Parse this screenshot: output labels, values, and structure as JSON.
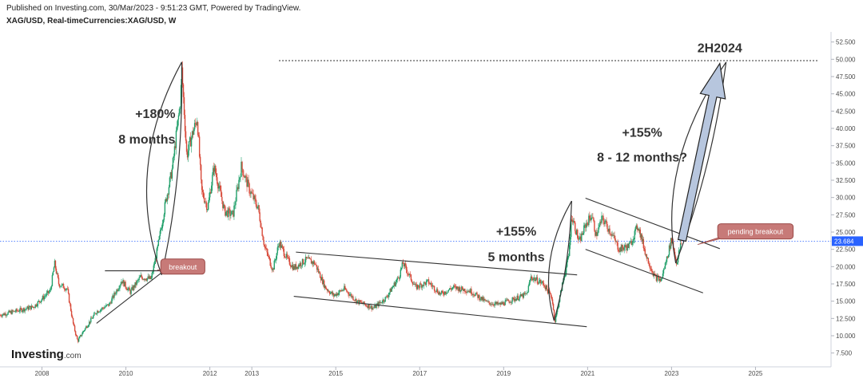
{
  "header": {
    "published": "Published on Investing.com, 30/Mar/2023 - 9:51:23 GMT, Powered by TradingView.",
    "symbol": "XAG/USD, Real-timeCurrencies:XAG/USD, W"
  },
  "branding": {
    "logo_main": "Investing",
    "logo_suffix": ".com"
  },
  "chart_data": {
    "type": "candlestick",
    "title": "XAG/USD, Real-timeCurrencies:XAG/USD, W",
    "interval": "W",
    "ylim": [
      5.5,
      53.5
    ],
    "y_ticks": [
      "52.500",
      "50.000",
      "47.500",
      "45.000",
      "42.500",
      "40.000",
      "37.500",
      "35.000",
      "32.500",
      "30.000",
      "27.500",
      "25.000",
      "22.500",
      "20.000",
      "17.500",
      "15.000",
      "12.500",
      "10.000",
      "7.500"
    ],
    "x_ticks": [
      {
        "year": 2008,
        "label": "2008"
      },
      {
        "year": 2010,
        "label": "2010"
      },
      {
        "year": 2012,
        "label": "2012"
      },
      {
        "year": 2013,
        "label": "2013"
      },
      {
        "year": 2015,
        "label": "2015"
      },
      {
        "year": 2017,
        "label": "2017"
      },
      {
        "year": 2019,
        "label": "2019"
      },
      {
        "year": 2021,
        "label": "2021"
      },
      {
        "year": 2023,
        "label": "2023"
      },
      {
        "year": 2025,
        "label": "2025"
      }
    ],
    "xlim": [
      2007.0,
      2026.8
    ],
    "last_price": 23.684,
    "last_price_label": "23.684",
    "target_level": 49.8,
    "price_path": [
      [
        2007.0,
        13.0
      ],
      [
        2007.4,
        13.6
      ],
      [
        2007.8,
        14.2
      ],
      [
        2008.2,
        16.5
      ],
      [
        2008.3,
        20.5
      ],
      [
        2008.4,
        17.5
      ],
      [
        2008.6,
        16.8
      ],
      [
        2008.75,
        11.5
      ],
      [
        2008.85,
        9.2
      ],
      [
        2009.0,
        10.8
      ],
      [
        2009.3,
        13.5
      ],
      [
        2009.6,
        14.5
      ],
      [
        2009.9,
        18.0
      ],
      [
        2010.1,
        16.3
      ],
      [
        2010.35,
        18.5
      ],
      [
        2010.6,
        18.2
      ],
      [
        2010.75,
        22.5
      ],
      [
        2010.95,
        29.5
      ],
      [
        2011.1,
        34.0
      ],
      [
        2011.3,
        44.0
      ],
      [
        2011.33,
        48.5
      ],
      [
        2011.45,
        36.0
      ],
      [
        2011.55,
        38.5
      ],
      [
        2011.7,
        41.5
      ],
      [
        2011.8,
        31.0
      ],
      [
        2011.95,
        28.5
      ],
      [
        2012.1,
        34.5
      ],
      [
        2012.35,
        28.0
      ],
      [
        2012.55,
        27.5
      ],
      [
        2012.75,
        34.5
      ],
      [
        2012.95,
        31.0
      ],
      [
        2013.15,
        28.5
      ],
      [
        2013.3,
        23.0
      ],
      [
        2013.5,
        19.5
      ],
      [
        2013.65,
        23.5
      ],
      [
        2013.85,
        21.0
      ],
      [
        2014.0,
        19.8
      ],
      [
        2014.3,
        21.0
      ],
      [
        2014.5,
        20.5
      ],
      [
        2014.75,
        17.0
      ],
      [
        2014.95,
        15.8
      ],
      [
        2015.2,
        16.8
      ],
      [
        2015.5,
        15.0
      ],
      [
        2015.9,
        14.0
      ],
      [
        2016.2,
        15.5
      ],
      [
        2016.5,
        18.5
      ],
      [
        2016.6,
        20.5
      ],
      [
        2016.9,
        17.0
      ],
      [
        2017.2,
        17.8
      ],
      [
        2017.5,
        16.0
      ],
      [
        2017.8,
        17.0
      ],
      [
        2018.2,
        16.5
      ],
      [
        2018.6,
        14.8
      ],
      [
        2018.9,
        14.5
      ],
      [
        2019.2,
        15.2
      ],
      [
        2019.55,
        16.0
      ],
      [
        2019.65,
        18.5
      ],
      [
        2019.95,
        17.5
      ],
      [
        2020.15,
        15.5
      ],
      [
        2020.22,
        12.0
      ],
      [
        2020.4,
        17.5
      ],
      [
        2020.55,
        21.5
      ],
      [
        2020.62,
        27.5
      ],
      [
        2020.8,
        23.5
      ],
      [
        2020.95,
        26.0
      ],
      [
        2021.1,
        27.5
      ],
      [
        2021.2,
        24.5
      ],
      [
        2021.35,
        27.0
      ],
      [
        2021.55,
        25.0
      ],
      [
        2021.75,
        22.5
      ],
      [
        2022.0,
        23.0
      ],
      [
        2022.2,
        26.0
      ],
      [
        2022.4,
        21.5
      ],
      [
        2022.6,
        18.5
      ],
      [
        2022.75,
        18.0
      ],
      [
        2022.9,
        21.5
      ],
      [
        2023.0,
        24.0
      ],
      [
        2023.12,
        20.5
      ],
      [
        2023.24,
        23.684
      ]
    ],
    "annotations": [
      {
        "text": "+180%",
        "x": 2010.7,
        "y": 41.5
      },
      {
        "text": "8 months",
        "x": 2010.5,
        "y": 37.8
      },
      {
        "text": "+155%",
        "x": 2019.3,
        "y": 24.5
      },
      {
        "text": "5 months",
        "x": 2019.3,
        "y": 20.8
      },
      {
        "text": "+155%",
        "x": 2022.3,
        "y": 38.8
      },
      {
        "text": "8 - 12 months?",
        "x": 2022.3,
        "y": 35.2
      },
      {
        "text": "2H2024",
        "x": 2024.15,
        "y": 51.0
      }
    ],
    "callouts": [
      {
        "text": "breakout",
        "x": 2010.83,
        "y": 21.1
      },
      {
        "text": "pending breakout",
        "x": 2024.1,
        "y": 26.2
      }
    ]
  }
}
